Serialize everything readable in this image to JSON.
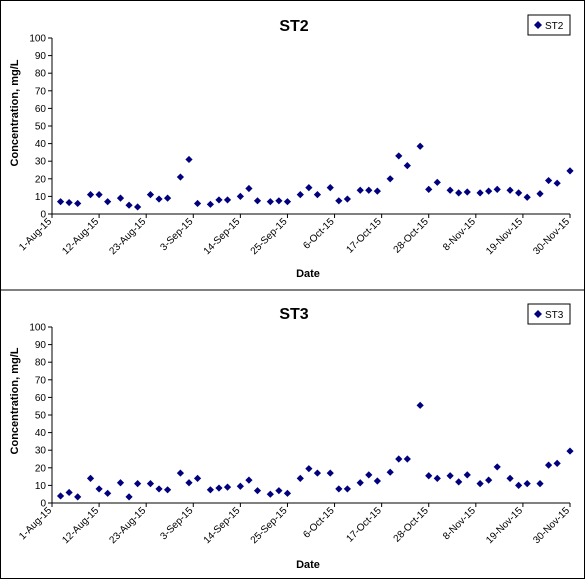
{
  "chart_data": [
    {
      "type": "scatter",
      "title": "ST2",
      "xlabel": "Date",
      "ylabel": "Concentration, mg/L",
      "ylim": [
        0,
        100
      ],
      "yticks": [
        "0",
        "10",
        "20",
        "30",
        "40",
        "50",
        "60",
        "70",
        "80",
        "90",
        "100"
      ],
      "xlim": [
        "2015-08-01",
        "2015-11-30"
      ],
      "xticks": [
        "1-Aug-15",
        "12-Aug-15",
        "23-Aug-15",
        "3-Sep-15",
        "14-Sep-15",
        "25-Sep-15",
        "6-Oct-15",
        "17-Oct-15",
        "28-Oct-15",
        "8-Nov-15",
        "19-Nov-15",
        "30-Nov-15"
      ],
      "grid": false,
      "legend": "top-right",
      "color": "#00007f",
      "marker": "diamond",
      "series": [
        {
          "name": "ST2",
          "points": [
            {
              "x": "2015-08-03",
              "y": 7
            },
            {
              "x": "2015-08-05",
              "y": 6.5
            },
            {
              "x": "2015-08-07",
              "y": 6
            },
            {
              "x": "2015-08-10",
              "y": 11
            },
            {
              "x": "2015-08-12",
              "y": 11
            },
            {
              "x": "2015-08-14",
              "y": 7
            },
            {
              "x": "2015-08-17",
              "y": 9
            },
            {
              "x": "2015-08-19",
              "y": 5
            },
            {
              "x": "2015-08-21",
              "y": 4
            },
            {
              "x": "2015-08-24",
              "y": 11
            },
            {
              "x": "2015-08-26",
              "y": 8.5
            },
            {
              "x": "2015-08-28",
              "y": 9
            },
            {
              "x": "2015-08-31",
              "y": 21
            },
            {
              "x": "2015-09-02",
              "y": 31
            },
            {
              "x": "2015-09-04",
              "y": 6
            },
            {
              "x": "2015-09-07",
              "y": 5.5
            },
            {
              "x": "2015-09-09",
              "y": 8
            },
            {
              "x": "2015-09-11",
              "y": 8
            },
            {
              "x": "2015-09-14",
              "y": 10
            },
            {
              "x": "2015-09-16",
              "y": 14.5
            },
            {
              "x": "2015-09-18",
              "y": 7.5
            },
            {
              "x": "2015-09-21",
              "y": 7
            },
            {
              "x": "2015-09-23",
              "y": 7.5
            },
            {
              "x": "2015-09-25",
              "y": 7
            },
            {
              "x": "2015-09-28",
              "y": 11
            },
            {
              "x": "2015-09-30",
              "y": 15
            },
            {
              "x": "2015-10-02",
              "y": 11
            },
            {
              "x": "2015-10-05",
              "y": 15
            },
            {
              "x": "2015-10-07",
              "y": 7.5
            },
            {
              "x": "2015-10-09",
              "y": 8.5
            },
            {
              "x": "2015-10-12",
              "y": 13.5
            },
            {
              "x": "2015-10-14",
              "y": 13.5
            },
            {
              "x": "2015-10-16",
              "y": 13
            },
            {
              "x": "2015-10-19",
              "y": 20
            },
            {
              "x": "2015-10-21",
              "y": 33
            },
            {
              "x": "2015-10-23",
              "y": 27.5
            },
            {
              "x": "2015-10-26",
              "y": 38.5
            },
            {
              "x": "2015-10-28",
              "y": 14
            },
            {
              "x": "2015-10-30",
              "y": 18
            },
            {
              "x": "2015-11-02",
              "y": 13.5
            },
            {
              "x": "2015-11-04",
              "y": 12
            },
            {
              "x": "2015-11-06",
              "y": 12.5
            },
            {
              "x": "2015-11-09",
              "y": 12
            },
            {
              "x": "2015-11-11",
              "y": 13
            },
            {
              "x": "2015-11-13",
              "y": 14
            },
            {
              "x": "2015-11-16",
              "y": 13.5
            },
            {
              "x": "2015-11-18",
              "y": 12
            },
            {
              "x": "2015-11-20",
              "y": 9.5
            },
            {
              "x": "2015-11-23",
              "y": 11.5
            },
            {
              "x": "2015-11-25",
              "y": 19
            },
            {
              "x": "2015-11-27",
              "y": 17.5
            },
            {
              "x": "2015-11-30",
              "y": 24.5
            }
          ]
        }
      ]
    },
    {
      "type": "scatter",
      "title": "ST3",
      "xlabel": "Date",
      "ylabel": "Concentration, mg/L",
      "ylim": [
        0,
        100
      ],
      "yticks": [
        "0",
        "10",
        "20",
        "30",
        "40",
        "50",
        "60",
        "70",
        "80",
        "90",
        "100"
      ],
      "xlim": [
        "2015-08-01",
        "2015-11-30"
      ],
      "xticks": [
        "1-Aug-15",
        "12-Aug-15",
        "23-Aug-15",
        "3-Sep-15",
        "14-Sep-15",
        "25-Sep-15",
        "6-Oct-15",
        "17-Oct-15",
        "28-Oct-15",
        "8-Nov-15",
        "19-Nov-15",
        "30-Nov-15"
      ],
      "grid": false,
      "legend": "top-right",
      "color": "#00007f",
      "marker": "diamond",
      "series": [
        {
          "name": "ST3",
          "points": [
            {
              "x": "2015-08-03",
              "y": 4
            },
            {
              "x": "2015-08-05",
              "y": 6
            },
            {
              "x": "2015-08-07",
              "y": 3.5
            },
            {
              "x": "2015-08-10",
              "y": 14
            },
            {
              "x": "2015-08-12",
              "y": 8
            },
            {
              "x": "2015-08-14",
              "y": 5.5
            },
            {
              "x": "2015-08-17",
              "y": 11.5
            },
            {
              "x": "2015-08-19",
              "y": 3.5
            },
            {
              "x": "2015-08-21",
              "y": 11
            },
            {
              "x": "2015-08-24",
              "y": 11
            },
            {
              "x": "2015-08-26",
              "y": 8
            },
            {
              "x": "2015-08-28",
              "y": 7.5
            },
            {
              "x": "2015-08-31",
              "y": 17
            },
            {
              "x": "2015-09-02",
              "y": 11.5
            },
            {
              "x": "2015-09-04",
              "y": 14
            },
            {
              "x": "2015-09-07",
              "y": 7.5
            },
            {
              "x": "2015-09-09",
              "y": 8.5
            },
            {
              "x": "2015-09-11",
              "y": 9
            },
            {
              "x": "2015-09-14",
              "y": 9.5
            },
            {
              "x": "2015-09-16",
              "y": 13
            },
            {
              "x": "2015-09-18",
              "y": 7
            },
            {
              "x": "2015-09-21",
              "y": 5
            },
            {
              "x": "2015-09-23",
              "y": 7
            },
            {
              "x": "2015-09-25",
              "y": 5.5
            },
            {
              "x": "2015-09-28",
              "y": 14
            },
            {
              "x": "2015-09-30",
              "y": 19.5
            },
            {
              "x": "2015-10-02",
              "y": 17
            },
            {
              "x": "2015-10-05",
              "y": 17
            },
            {
              "x": "2015-10-07",
              "y": 8
            },
            {
              "x": "2015-10-09",
              "y": 8
            },
            {
              "x": "2015-10-12",
              "y": 11.5
            },
            {
              "x": "2015-10-14",
              "y": 16
            },
            {
              "x": "2015-10-16",
              "y": 12.5
            },
            {
              "x": "2015-10-19",
              "y": 17.5
            },
            {
              "x": "2015-10-21",
              "y": 25
            },
            {
              "x": "2015-10-23",
              "y": 25
            },
            {
              "x": "2015-10-26",
              "y": 55.5
            },
            {
              "x": "2015-10-28",
              "y": 15.5
            },
            {
              "x": "2015-10-30",
              "y": 14
            },
            {
              "x": "2015-11-02",
              "y": 15.5
            },
            {
              "x": "2015-11-04",
              "y": 12
            },
            {
              "x": "2015-11-06",
              "y": 16
            },
            {
              "x": "2015-11-09",
              "y": 11
            },
            {
              "x": "2015-11-11",
              "y": 13
            },
            {
              "x": "2015-11-13",
              "y": 20.5
            },
            {
              "x": "2015-11-16",
              "y": 14
            },
            {
              "x": "2015-11-18",
              "y": 10
            },
            {
              "x": "2015-11-20",
              "y": 11
            },
            {
              "x": "2015-11-23",
              "y": 11
            },
            {
              "x": "2015-11-25",
              "y": 21.5
            },
            {
              "x": "2015-11-27",
              "y": 22.5
            },
            {
              "x": "2015-11-30",
              "y": 29.5
            }
          ]
        }
      ]
    }
  ]
}
